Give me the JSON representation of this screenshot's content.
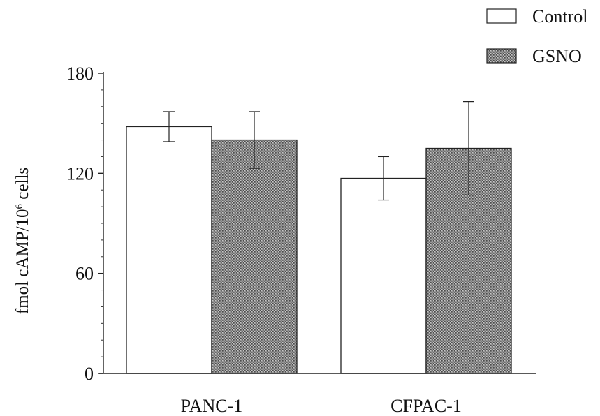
{
  "chart_data": {
    "type": "bar",
    "title": "",
    "xlabel": "",
    "ylabel": {
      "prefix": "fmol cAMP/10",
      "superscript": "6",
      "suffix": " cells"
    },
    "ylim": [
      0,
      180
    ],
    "yticks": [
      0,
      60,
      120,
      180
    ],
    "ytick_labels": [
      "0",
      "60",
      "120",
      "180"
    ],
    "categories": [
      "PANC-1",
      "CFPAC-1"
    ],
    "series": [
      {
        "name": "Control",
        "values": [
          148,
          117
        ],
        "errors": [
          9,
          13
        ],
        "pattern": "solid-white"
      },
      {
        "name": "GSNO",
        "values": [
          140,
          135
        ],
        "errors": [
          17,
          28
        ],
        "pattern": "stipple-gray"
      }
    ],
    "grid": false,
    "legend_position": "top-right"
  }
}
